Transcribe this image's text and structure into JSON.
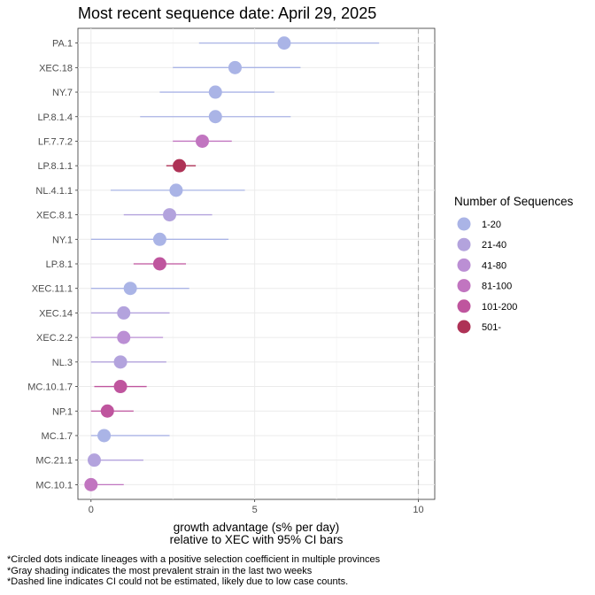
{
  "chart_data": {
    "type": "scatter",
    "title": "Most recent sequence date: April 29, 2025",
    "xlabel_line1": "growth advantage (s% per day)",
    "xlabel_line2": "relative to  XEC  with 95% CI bars",
    "xlim": [
      -0.4,
      10.5
    ],
    "xticks": [
      0,
      5,
      10
    ],
    "dashed_line_x": 10,
    "grid": true,
    "legend": {
      "title": "Number of Sequences",
      "placement": "right",
      "entries": [
        {
          "label": "1-20",
          "color": "#aab4e6"
        },
        {
          "label": "21-40",
          "color": "#b3a3dd"
        },
        {
          "label": "41-80",
          "color": "#bb8fd4"
        },
        {
          "label": "81-100",
          "color": "#c175c0"
        },
        {
          "label": "101-200",
          "color": "#bf559e"
        },
        {
          "label": "501-",
          "color": "#ae3256"
        }
      ]
    },
    "lineages": [
      {
        "name": "PA.1",
        "estimate": 5.9,
        "lower": 3.3,
        "upper": 8.8,
        "group": "1-20"
      },
      {
        "name": "XEC.18",
        "estimate": 4.4,
        "lower": 2.5,
        "upper": 6.4,
        "group": "1-20"
      },
      {
        "name": "NY.7",
        "estimate": 3.8,
        "lower": 2.1,
        "upper": 5.6,
        "group": "1-20"
      },
      {
        "name": "LP.8.1.4",
        "estimate": 3.8,
        "lower": 1.5,
        "upper": 6.1,
        "group": "1-20"
      },
      {
        "name": "LF.7.7.2",
        "estimate": 3.4,
        "lower": 2.5,
        "upper": 4.3,
        "group": "81-100"
      },
      {
        "name": "LP.8.1.1",
        "estimate": 2.7,
        "lower": 2.3,
        "upper": 3.2,
        "group": "501-"
      },
      {
        "name": "NL.4.1.1",
        "estimate": 2.6,
        "lower": 0.6,
        "upper": 4.7,
        "group": "1-20"
      },
      {
        "name": "XEC.8.1",
        "estimate": 2.4,
        "lower": 1.0,
        "upper": 3.7,
        "group": "21-40"
      },
      {
        "name": "NY.1",
        "estimate": 2.1,
        "lower": 0.0,
        "upper": 4.2,
        "group": "1-20"
      },
      {
        "name": "LP.8.1",
        "estimate": 2.1,
        "lower": 1.3,
        "upper": 2.9,
        "group": "101-200"
      },
      {
        "name": "XEC.11.1",
        "estimate": 1.2,
        "lower": 0.0,
        "upper": 3.0,
        "group": "1-20"
      },
      {
        "name": "XEC.14",
        "estimate": 1.0,
        "lower": 0.0,
        "upper": 2.4,
        "group": "21-40"
      },
      {
        "name": "XEC.2.2",
        "estimate": 1.0,
        "lower": 0.0,
        "upper": 2.2,
        "group": "41-80"
      },
      {
        "name": "NL.3",
        "estimate": 0.9,
        "lower": 0.0,
        "upper": 2.3,
        "group": "21-40"
      },
      {
        "name": "MC.10.1.7",
        "estimate": 0.9,
        "lower": 0.1,
        "upper": 1.7,
        "group": "101-200"
      },
      {
        "name": "NP.1",
        "estimate": 0.5,
        "lower": 0.0,
        "upper": 1.3,
        "group": "101-200"
      },
      {
        "name": "MC.1.7",
        "estimate": 0.4,
        "lower": 0.0,
        "upper": 2.4,
        "group": "1-20"
      },
      {
        "name": "MC.21.1",
        "estimate": 0.1,
        "lower": 0.0,
        "upper": 1.6,
        "group": "21-40"
      },
      {
        "name": "MC.10.1",
        "estimate": 0.0,
        "lower": 0.0,
        "upper": 1.0,
        "group": "81-100"
      }
    ]
  },
  "footnotes": [
    "*Circled dots indicate lineages with a positive selection coefficient in multiple provinces",
    "*Gray shading indicates the most prevalent strain in the last two weeks",
    "*Dashed line indicates CI could not be estimated, likely due to low case counts."
  ]
}
